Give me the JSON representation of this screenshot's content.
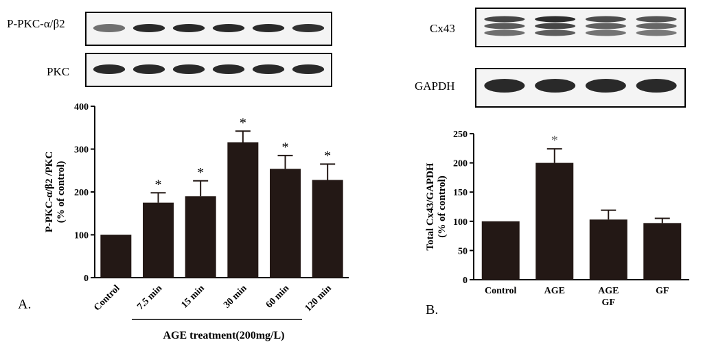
{
  "panel_a": {
    "label": "A.",
    "blot_labels": [
      "P-PKC-α/β2",
      "PKC"
    ],
    "blot_intensity": [
      0.45,
      1,
      1,
      1,
      1,
      0.95
    ]
  },
  "panel_b": {
    "label": "B.",
    "blot_labels": [
      "Cx43",
      "GAPDH"
    ],
    "blot_intensity": [
      0.8,
      1,
      0.75,
      0.7
    ]
  },
  "chart_data": [
    {
      "type": "bar",
      "categories": [
        "Control",
        "7.5 min",
        "15 min",
        "30 min",
        "60 min",
        "120 min"
      ],
      "values": [
        100,
        175,
        190,
        316,
        254,
        228
      ],
      "errors": [
        0,
        23,
        36,
        26,
        31,
        37
      ],
      "significance": [
        "",
        "*",
        "*",
        "*",
        "*",
        "*"
      ],
      "ylabel": [
        "P-PKC-α/β2 /PKC",
        "(% of control)"
      ],
      "xlabel": "AGE treatment(200mg/L)",
      "ylim": [
        0,
        400
      ],
      "yticks": [
        0,
        100,
        200,
        300,
        400
      ],
      "bar_color": "#231815",
      "grid": false
    },
    {
      "type": "bar",
      "categories": [
        "Control",
        "AGE",
        "AGE\nGF",
        "GF"
      ],
      "values": [
        100,
        200,
        103,
        97
      ],
      "errors": [
        0,
        24,
        16,
        8
      ],
      "significance": [
        "",
        "*",
        "",
        ""
      ],
      "ylabel": [
        "Total Cx43/GAPDH",
        "(% of control)"
      ],
      "ylim": [
        0,
        250
      ],
      "yticks": [
        0,
        50,
        100,
        150,
        200,
        250
      ],
      "bar_color": "#231815",
      "grid": false
    }
  ]
}
